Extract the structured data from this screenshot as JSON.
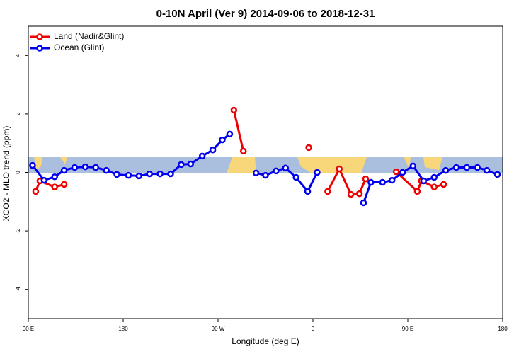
{
  "chart_data": {
    "type": "line",
    "title": "0-10N April (Ver 9)   2014-09-06 to 2018-12-31",
    "x_label": "Longitude (deg E)",
    "y_label": "XCO2 - MLO trend (ppm)",
    "xlim": [
      90,
      540
    ],
    "xticks": [
      {
        "value": 90,
        "label": "90 E"
      },
      180,
      {
        "value": 270,
        "label": "90 W"
      },
      {
        "value": 360,
        "label": "0"
      },
      {
        "value": 450,
        "label": "90 E"
      },
      {
        "value": 540,
        "label": "180"
      }
    ],
    "ylim": [
      -5,
      5
    ],
    "yticks": [
      -4,
      -2,
      0,
      2,
      4
    ],
    "legend": "top-left",
    "series": [
      {
        "name": "Land (Nadir&Glint)",
        "color": "#ee0000",
        "x": [
          97,
          101,
          115,
          124,
          null,
          285,
          294,
          null,
          356,
          null,
          374,
          385,
          396,
          404,
          410,
          null,
          439,
          459,
          463,
          475,
          484
        ],
        "values": [
          -0.65,
          -0.29,
          -0.5,
          -0.41,
          null,
          2.13,
          0.73,
          null,
          0.85,
          null,
          -0.65,
          0.12,
          -0.75,
          -0.73,
          -0.22,
          null,
          0.02,
          -0.65,
          -0.29,
          -0.5,
          -0.41
        ]
      },
      {
        "name": "Ocean (Glint)",
        "color": "#0000ee",
        "x": [
          94,
          105,
          115,
          124,
          134,
          144,
          154,
          164,
          174,
          185,
          195,
          205,
          215,
          225,
          235,
          244,
          255,
          265,
          274,
          281,
          null,
          306,
          315,
          325,
          334,
          344,
          355,
          364,
          null,
          408,
          415,
          426,
          435,
          445,
          455,
          465,
          475,
          486,
          496,
          506,
          516,
          525,
          535
        ],
        "values": [
          0.24,
          -0.27,
          -0.15,
          0.07,
          0.17,
          0.19,
          0.17,
          0.07,
          -0.07,
          -0.1,
          -0.12,
          -0.05,
          -0.05,
          -0.05,
          0.27,
          0.29,
          0.56,
          0.77,
          1.11,
          1.31,
          null,
          -0.02,
          -0.1,
          0.05,
          0.15,
          -0.17,
          -0.65,
          0.0,
          null,
          -1.04,
          -0.34,
          -0.34,
          -0.27,
          0.0,
          0.22,
          -0.29,
          -0.17,
          0.07,
          0.17,
          0.17,
          0.17,
          0.07,
          -0.07
        ]
      }
    ]
  }
}
